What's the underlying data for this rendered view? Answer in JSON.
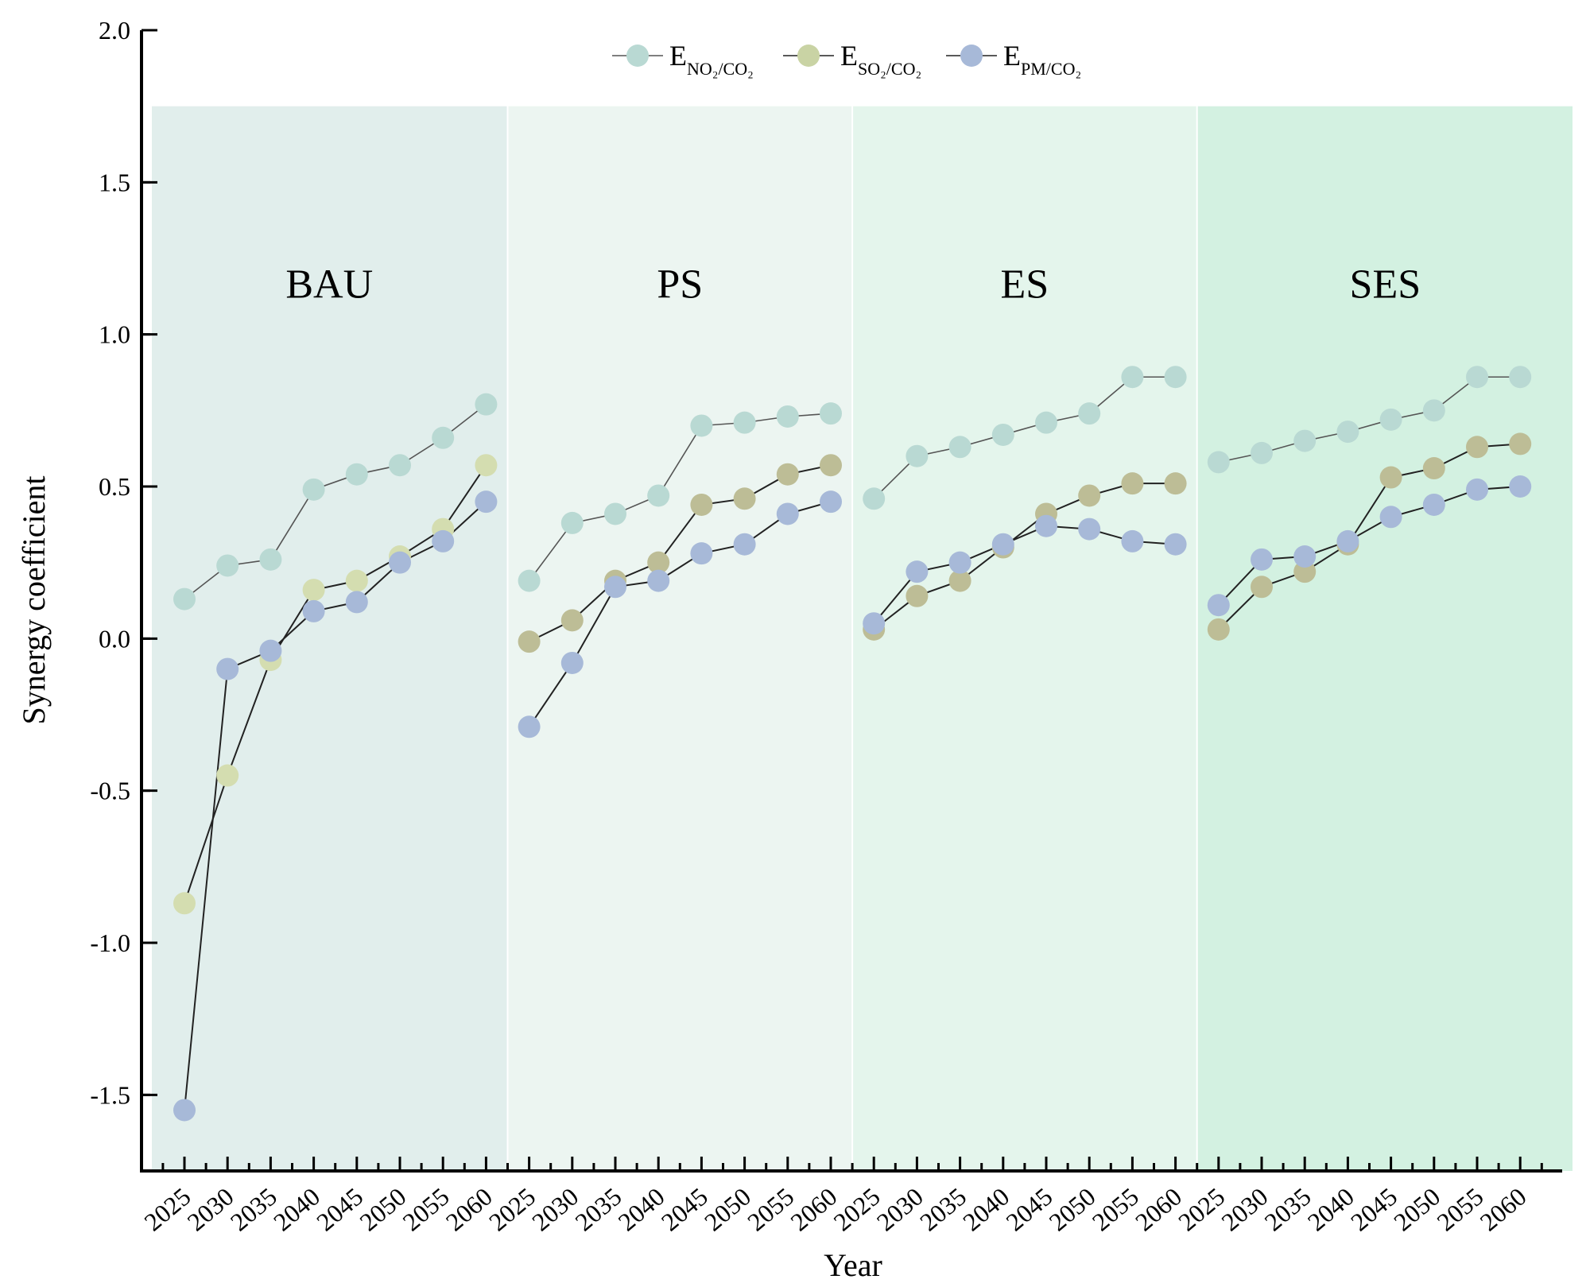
{
  "chart_data": {
    "type": "line",
    "xlabel": "Year",
    "ylabel": "Synergy coefficient",
    "ylim": [
      -1.75,
      2.0
    ],
    "yticks": [
      -1.5,
      -1.0,
      -0.5,
      0.0,
      0.5,
      1.0,
      1.5,
      2.0
    ],
    "ytick_labels": [
      "-1.5",
      "-1.0",
      "-0.5",
      "0.0",
      "0.5",
      "1.0",
      "1.5",
      "2.0"
    ],
    "legend_position": "top-center",
    "years": [
      "2025",
      "2030",
      "2035",
      "2040",
      "2045",
      "2050",
      "2055",
      "2060"
    ],
    "series_meta": [
      {
        "key": "no2",
        "base": "E",
        "sub": "NO₂/CO₂",
        "color": "#b9d9d3"
      },
      {
        "key": "so2",
        "base": "E",
        "sub": "SO₂/CO₂",
        "color": "#c9d3a4"
      },
      {
        "key": "pm",
        "base": "E",
        "sub": "PM/CO₂",
        "color": "#a7b9d8"
      }
    ],
    "panels": [
      {
        "name": "BAU",
        "bg": "#e1eeec",
        "marker_colors": {
          "no2": "#b9d9d3",
          "so2": "#d4ddb0",
          "pm": "#a7b9d8"
        },
        "series": {
          "no2": [
            0.13,
            0.24,
            0.26,
            0.49,
            0.54,
            0.57,
            0.66,
            0.77
          ],
          "so2": [
            -0.87,
            -0.45,
            -0.07,
            0.16,
            0.19,
            0.27,
            0.36,
            0.57
          ],
          "pm": [
            -1.55,
            -0.1,
            -0.04,
            0.09,
            0.12,
            0.25,
            0.32,
            0.45
          ]
        }
      },
      {
        "name": "PS",
        "bg": "#ecf5f1",
        "marker_colors": {
          "no2": "#b9d9d3",
          "so2": "#bdbd96",
          "pm": "#a7b9d8"
        },
        "series": {
          "no2": [
            0.19,
            0.38,
            0.41,
            0.47,
            0.7,
            0.71,
            0.73,
            0.74
          ],
          "so2": [
            -0.01,
            0.06,
            0.19,
            0.25,
            0.44,
            0.46,
            0.54,
            0.57
          ],
          "pm": [
            -0.29,
            -0.08,
            0.17,
            0.19,
            0.28,
            0.31,
            0.41,
            0.45
          ]
        }
      },
      {
        "name": "ES",
        "bg": "#e4f5ec",
        "marker_colors": {
          "no2": "#b9d9d3",
          "so2": "#bdbd96",
          "pm": "#a7b9d8"
        },
        "series": {
          "no2": [
            0.46,
            0.6,
            0.63,
            0.67,
            0.71,
            0.74,
            0.86,
            0.86
          ],
          "so2": [
            0.03,
            0.14,
            0.19,
            0.3,
            0.41,
            0.47,
            0.51,
            0.51
          ],
          "pm": [
            0.05,
            0.22,
            0.25,
            0.31,
            0.37,
            0.36,
            0.32,
            0.31
          ]
        }
      },
      {
        "name": "SES",
        "bg": "#d3f1e1",
        "marker_colors": {
          "no2": "#b9d9d3",
          "so2": "#bdbd96",
          "pm": "#a7b9d8"
        },
        "series": {
          "no2": [
            0.58,
            0.61,
            0.65,
            0.68,
            0.72,
            0.75,
            0.86,
            0.86
          ],
          "so2": [
            0.03,
            0.17,
            0.22,
            0.31,
            0.53,
            0.56,
            0.63,
            0.64
          ],
          "pm": [
            0.11,
            0.26,
            0.27,
            0.32,
            0.4,
            0.44,
            0.49,
            0.5
          ]
        }
      }
    ]
  }
}
